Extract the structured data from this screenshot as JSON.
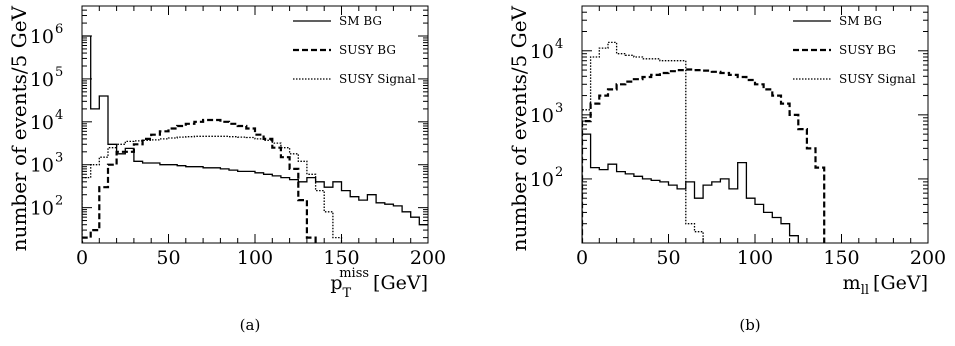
{
  "figure": {
    "captions": [
      "(a)",
      "(b)"
    ]
  },
  "chart_data": [
    {
      "type": "line",
      "panel": "(a)",
      "xlabel_main": "p",
      "xlabel_sub": "T",
      "xlabel_sup": "miss",
      "xlabel_unit": "[GeV]",
      "ylabel": "number of events/5 GeV",
      "y_scale": "log",
      "xlim": [
        0,
        200
      ],
      "ylim": [
        15,
        5000000
      ],
      "x_ticks": [
        "0",
        "50",
        "100",
        "150",
        "200"
      ],
      "y_ticks": [
        {
          "value": 100,
          "base": "10",
          "exp": "2"
        },
        {
          "value": 1000,
          "base": "10",
          "exp": "3"
        },
        {
          "value": 10000,
          "base": "10",
          "exp": "4"
        },
        {
          "value": 100000,
          "base": "10",
          "exp": "5"
        },
        {
          "value": 1000000,
          "base": "10",
          "exp": "6"
        }
      ],
      "legend_position": "top-right",
      "bin_width": 5,
      "series": [
        {
          "name": "SM BG",
          "style": "solid",
          "values": [
            1000000,
            20000,
            40000,
            3000,
            1800,
            2400,
            1200,
            1100,
            1100,
            1000,
            1000,
            950,
            900,
            900,
            850,
            850,
            800,
            750,
            700,
            700,
            650,
            600,
            550,
            500,
            450,
            400,
            500,
            400,
            300,
            400,
            250,
            180,
            150,
            200,
            130,
            120,
            110,
            80,
            60,
            40
          ]
        },
        {
          "name": "SUSY BG",
          "style": "dashed",
          "values": [
            20,
            30,
            300,
            1000,
            2000,
            2000,
            3000,
            4000,
            5000,
            6000,
            7000,
            8000,
            9000,
            10000,
            11000,
            11000,
            10000,
            9000,
            8000,
            7000,
            5000,
            4000,
            2500,
            1500,
            800,
            150,
            20,
            0,
            0,
            0,
            0,
            0,
            0,
            0,
            0,
            0,
            0,
            0,
            0,
            0
          ]
        },
        {
          "name": "SUSY Signal",
          "style": "dotted",
          "values": [
            500,
            1000,
            1500,
            2500,
            3000,
            3500,
            3600,
            3700,
            3800,
            4000,
            4200,
            4400,
            4500,
            4600,
            4600,
            4600,
            4600,
            4500,
            4400,
            4300,
            4000,
            3700,
            3200,
            2500,
            1800,
            1200,
            600,
            250,
            80,
            20,
            0,
            0,
            0,
            0,
            0,
            0,
            0,
            0,
            0,
            0
          ]
        }
      ]
    },
    {
      "type": "line",
      "panel": "(b)",
      "xlabel_main": "m",
      "xlabel_sub": "ll",
      "xlabel_unit": "[GeV]",
      "ylabel": "number of events/5 GeV",
      "y_scale": "log",
      "xlim": [
        0,
        200
      ],
      "ylim": [
        10,
        50000
      ],
      "x_ticks": [
        "0",
        "50",
        "100",
        "150",
        "200"
      ],
      "y_ticks": [
        {
          "value": 100,
          "base": "10",
          "exp": "2"
        },
        {
          "value": 1000,
          "base": "10",
          "exp": "3"
        },
        {
          "value": 10000,
          "base": "10",
          "exp": "4"
        }
      ],
      "legend_position": "top-right",
      "bin_width": 5,
      "series": [
        {
          "name": "SM BG",
          "style": "solid",
          "values": [
            500,
            150,
            140,
            170,
            130,
            120,
            110,
            100,
            95,
            90,
            80,
            70,
            90,
            50,
            80,
            90,
            100,
            70,
            180,
            50,
            40,
            30,
            25,
            20,
            13,
            0,
            0,
            0,
            0,
            0,
            0,
            0,
            0,
            0,
            0,
            0,
            0,
            0,
            0,
            0
          ]
        },
        {
          "name": "SUSY BG",
          "style": "dashed",
          "values": [
            800,
            1500,
            2000,
            2500,
            3000,
            3300,
            3600,
            3900,
            4200,
            4500,
            4800,
            5000,
            5100,
            5000,
            4900,
            4700,
            4500,
            4200,
            3900,
            3500,
            3000,
            2500,
            2000,
            1500,
            1000,
            600,
            300,
            150,
            0,
            0,
            0,
            0,
            0,
            0,
            0,
            0,
            0,
            0,
            0,
            0
          ]
        },
        {
          "name": "SUSY Signal",
          "style": "dotted",
          "values": [
            1200,
            8000,
            11000,
            13500,
            9000,
            8500,
            8000,
            7500,
            7500,
            7000,
            7000,
            7000,
            20,
            15,
            0,
            0,
            0,
            0,
            0,
            0,
            0,
            0,
            0,
            0,
            0,
            0,
            0,
            0,
            0,
            0,
            0,
            0,
            0,
            0,
            0,
            0,
            0,
            0,
            0,
            0
          ]
        }
      ]
    }
  ]
}
